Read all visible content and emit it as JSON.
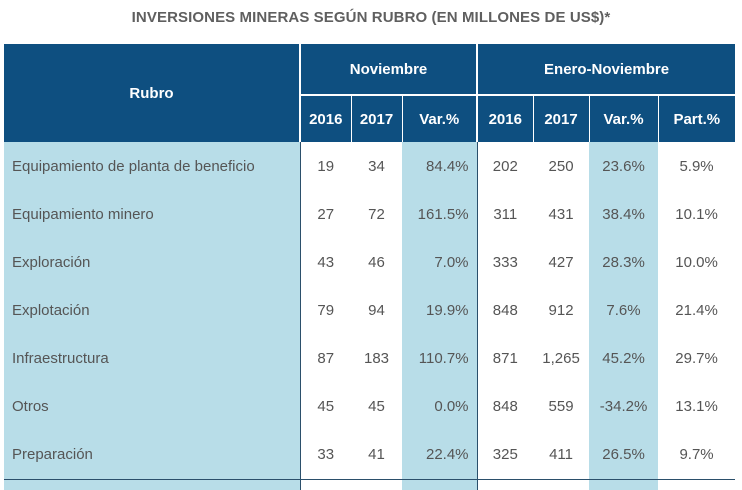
{
  "title": "INVERSIONES MINERAS SEGÚN RUBRO (EN MILLONES DE US$)*",
  "header": {
    "rubro": "Rubro",
    "group_noviembre": "Noviembre",
    "group_enero_noviembre": "Enero-Noviembre",
    "cols_noviembre": [
      "2016",
      "2017",
      "Var.%"
    ],
    "cols_enero_noviembre": [
      "2016",
      "2017",
      "Var.%",
      "Part.%"
    ]
  },
  "rows": [
    {
      "rubro": "Equipamiento de planta de beneficio",
      "nov_2016": "19",
      "nov_2017": "34",
      "nov_var": "84.4%",
      "en_2016": "202",
      "en_2017": "250",
      "en_var": "23.6%",
      "en_part": "5.9%"
    },
    {
      "rubro": "Equipamiento minero",
      "nov_2016": "27",
      "nov_2017": "72",
      "nov_var": "161.5%",
      "en_2016": "311",
      "en_2017": "431",
      "en_var": "38.4%",
      "en_part": "10.1%"
    },
    {
      "rubro": "Exploración",
      "nov_2016": "43",
      "nov_2017": "46",
      "nov_var": "7.0%",
      "en_2016": "333",
      "en_2017": "427",
      "en_var": "28.3%",
      "en_part": "10.0%"
    },
    {
      "rubro": "Explotación",
      "nov_2016": "79",
      "nov_2017": "94",
      "nov_var": "19.9%",
      "en_2016": "848",
      "en_2017": "912",
      "en_var": "7.6%",
      "en_part": "21.4%"
    },
    {
      "rubro": "Infraestructura",
      "nov_2016": "87",
      "nov_2017": "183",
      "nov_var": "110.7%",
      "en_2016": "871",
      "en_2017": "1,265",
      "en_var": "45.2%",
      "en_part": "29.7%"
    },
    {
      "rubro": "Otros",
      "nov_2016": "45",
      "nov_2017": "45",
      "nov_var": "0.0%",
      "en_2016": "848",
      "en_2017": "559",
      "en_var": "-34.2%",
      "en_part": "13.1%"
    },
    {
      "rubro": "Preparación",
      "nov_2016": "33",
      "nov_2017": "41",
      "nov_var": "22.4%",
      "en_2016": "325",
      "en_2017": "411",
      "en_var": "26.5%",
      "en_part": "9.7%"
    }
  ],
  "colors": {
    "header_bg": "#0e4f80",
    "highlight_bg": "#b8dde8",
    "title_text": "#5f5f5f",
    "body_text": "#555555"
  }
}
